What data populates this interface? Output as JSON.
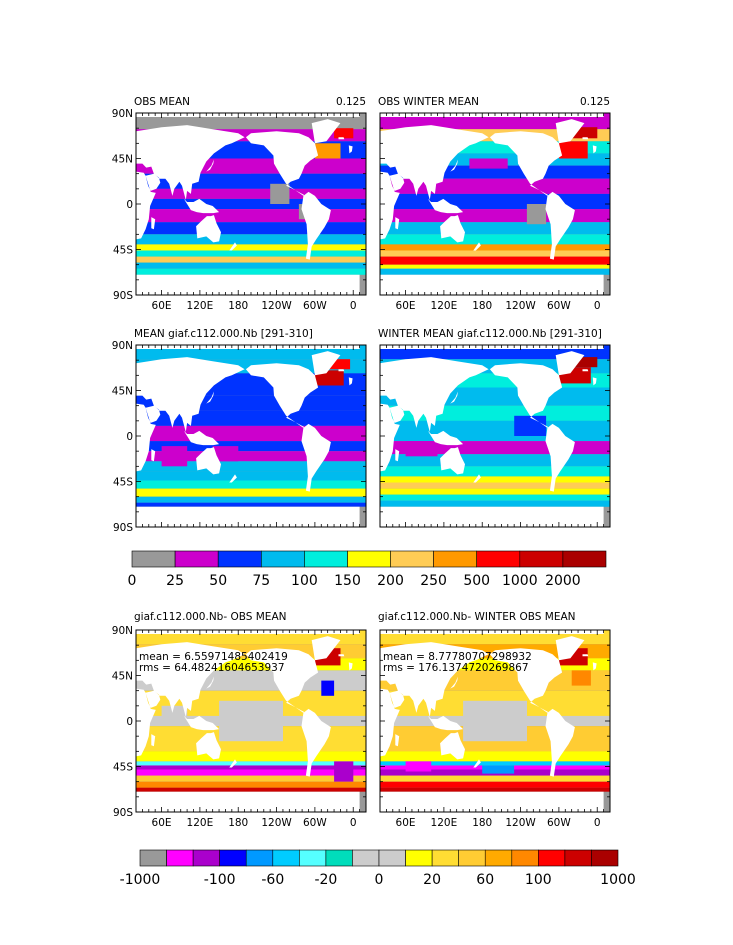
{
  "colors": {
    "land": "#ffffff",
    "frame": "#000000",
    "cbar_top": [
      "#999999",
      "#cc00cc",
      "#0033ff",
      "#00bbee",
      "#00eedd",
      "#ffff00",
      "#ffcc55",
      "#ff9900",
      "#ff0000",
      "#cc0000",
      "#aa0000"
    ],
    "cbar_bottom": [
      "#999999",
      "#ff00ff",
      "#aa00cc",
      "#0000ff",
      "#0099ff",
      "#00ccff",
      "#55ffff",
      "#00ddbb",
      "#cccccc",
      "#cccccc",
      "#ffff00",
      "#ffdd33",
      "#ffcc33",
      "#ffaa00",
      "#ff8800",
      "#ff0000",
      "#cc0000",
      "#aa0000"
    ]
  },
  "chart_data": [
    {
      "type": "heatmap",
      "title": "OBS MEAN",
      "corner_value": "0.125",
      "x_ticks": [
        "60E",
        "120E",
        "180",
        "120W",
        "60W",
        "0"
      ],
      "y_ticks": [
        "90N",
        "45N",
        "0",
        "45S",
        "90S"
      ],
      "stats": null,
      "colorbar": "top"
    },
    {
      "type": "heatmap",
      "title": "OBS WINTER MEAN",
      "corner_value": "0.125",
      "x_ticks": [
        "60E",
        "120E",
        "180",
        "120W",
        "60W",
        "0"
      ],
      "y_ticks": [],
      "stats": null,
      "colorbar": "top"
    },
    {
      "type": "heatmap",
      "title": "MEAN giaf.c112.000.Nb [291-310]",
      "corner_value": "",
      "x_ticks": [],
      "y_ticks": [
        "90N",
        "45N",
        "0",
        "45S",
        "90S"
      ],
      "stats": null,
      "colorbar": "top"
    },
    {
      "type": "heatmap",
      "title": "WINTER MEAN giaf.c112.000.Nb [291-310]",
      "corner_value": "",
      "x_ticks": [],
      "y_ticks": [],
      "stats": null,
      "colorbar": "top"
    },
    {
      "type": "heatmap",
      "title": "giaf.c112.000.Nb- OBS MEAN",
      "corner_value": "",
      "x_ticks": [
        "60E",
        "120E",
        "180",
        "120W",
        "60W",
        "0"
      ],
      "y_ticks": [
        "90N",
        "45N",
        "0",
        "45S",
        "90S"
      ],
      "stats": {
        "mean": "mean = 6.55971485402419",
        "rms": "rms = 64.48241604653937"
      },
      "colorbar": "bottom"
    },
    {
      "type": "heatmap",
      "title": "giaf.c112.000.Nb- WINTER OBS MEAN",
      "corner_value": "",
      "x_ticks": [
        "60E",
        "120E",
        "180",
        "120W",
        "60W",
        "0"
      ],
      "y_ticks": [],
      "stats": {
        "mean": "mean = 8.77780707298932",
        "rms": "rms = 176.1374720269867"
      },
      "colorbar": "bottom"
    }
  ],
  "colorbar_top": {
    "labels": [
      "0",
      "25",
      "50",
      "75",
      "100",
      "150",
      "200",
      "250",
      "500",
      "1000",
      "2000"
    ]
  },
  "colorbar_bottom": {
    "labels": [
      "-1000",
      "-100",
      "-60",
      "-20",
      "0",
      "20",
      "60",
      "100",
      "1000"
    ]
  }
}
